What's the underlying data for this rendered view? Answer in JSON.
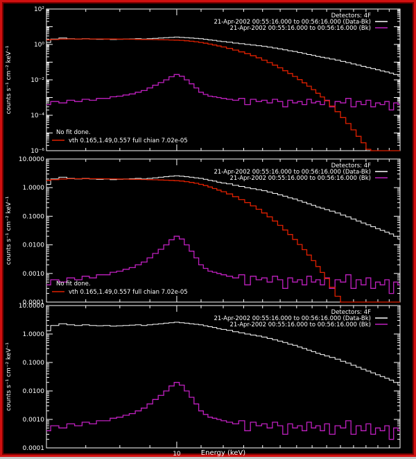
{
  "colors": {
    "background": "#000000",
    "frame": "#d01010",
    "data_minus_bk": "#ffffff",
    "background_series": "#c020c0",
    "model": "#e02000"
  },
  "xlabel": "Energy (keV)",
  "chart_data": [
    {
      "type": "line",
      "ylabel": "counts s⁻¹ cm⁻² keV⁻¹",
      "log_y": true,
      "ylim": [
        1e-06,
        100
      ],
      "yticks": [
        1e-06,
        0.0001,
        0.01,
        1,
        100
      ],
      "ytick_labels": [
        "10⁻⁶",
        "10⁻⁴",
        "10⁻²",
        "10⁰",
        "10²"
      ],
      "legend": {
        "placement": "top-right",
        "title": "Detectors: 4F",
        "entries": [
          "21-Apr-2002 00:55:16.000 to 00:56:16.000 (Data-Bk)",
          "21-Apr-2002 00:55:16.000 to 00:56:16.000 (Bk)"
        ]
      },
      "annotations": [
        "No fit done.",
        "vth 0.165,1.49,0.557  full chian 7.02e-05"
      ],
      "model_visible": true
    },
    {
      "type": "line",
      "ylabel": "counts s⁻¹ cm⁻² keV⁻¹",
      "log_y": true,
      "ylim": [
        0.0001,
        10
      ],
      "yticks": [
        0.0001,
        0.001,
        0.01,
        0.1,
        1,
        10
      ],
      "ytick_labels": [
        "0.0001",
        "0.0010",
        "0.0100",
        "0.1000",
        "1.0000",
        "10.0000"
      ],
      "legend": {
        "placement": "top-right",
        "title": "Detectors: 4F",
        "entries": [
          "21-Apr-2002 00:55:16.000 to 00:56:16.000 (Data-Bk)",
          "21-Apr-2002 00:55:16.000 to 00:56:16.000 (Bk)"
        ]
      },
      "annotations": [
        "No fit done.",
        "vth 0.165,1.49,0.557  full chian 7.02e-05"
      ],
      "model_visible": true
    },
    {
      "type": "line",
      "ylabel": "counts s⁻¹ cm⁻² keV⁻¹",
      "log_y": true,
      "ylim": [
        0.0001,
        10
      ],
      "yticks": [
        0.0001,
        0.001,
        0.01,
        0.1,
        1,
        10
      ],
      "ytick_labels": [
        "0.0001",
        "0.0010",
        "0.0100",
        "0.1000",
        "1.0000",
        "10.0000"
      ],
      "legend": {
        "placement": "top-right",
        "title": "Detectors: 4F",
        "entries": [
          "21-Apr-2002 00:55:16.000 to 00:56:16.000 (Data-Bk)",
          "21-Apr-2002 00:55:16.000 to 00:56:16.000 (Bk)"
        ]
      },
      "annotations": [],
      "model_visible": false
    }
  ],
  "x_axis": {
    "log_x": true,
    "xlim": [
      6.0,
      24.0
    ],
    "tick_label_values": [
      10
    ],
    "tick_labels": [
      "10"
    ]
  },
  "spectrum": {
    "energy_keV": [
      6.0,
      6.2,
      6.4,
      6.6,
      6.8,
      7.0,
      7.2,
      7.4,
      7.6,
      7.8,
      8.0,
      8.2,
      8.4,
      8.6,
      8.8,
      9.0,
      9.2,
      9.4,
      9.6,
      9.8,
      10.0,
      10.2,
      10.4,
      10.6,
      10.8,
      11.0,
      11.2,
      11.4,
      11.6,
      11.8,
      12.0,
      12.3,
      12.6,
      12.9,
      13.2,
      13.5,
      13.8,
      14.1,
      14.4,
      14.7,
      15.0,
      15.3,
      15.6,
      15.9,
      16.2,
      16.5,
      16.8,
      17.1,
      17.4,
      17.7,
      18.0,
      18.4,
      18.8,
      19.2,
      19.6,
      20.0,
      20.4,
      20.8,
      21.2,
      21.6,
      22.0,
      22.4,
      22.8,
      23.2,
      23.6,
      24.0
    ],
    "data_minus_bk": [
      1.3,
      2.0,
      2.3,
      2.1,
      2.0,
      2.1,
      2.0,
      1.95,
      2.0,
      1.9,
      1.95,
      2.0,
      2.05,
      2.1,
      2.0,
      2.1,
      2.2,
      2.3,
      2.4,
      2.5,
      2.6,
      2.5,
      2.4,
      2.3,
      2.2,
      2.1,
      1.95,
      1.8,
      1.7,
      1.55,
      1.45,
      1.35,
      1.2,
      1.1,
      1.0,
      0.92,
      0.85,
      0.78,
      0.7,
      0.63,
      0.56,
      0.5,
      0.44,
      0.4,
      0.35,
      0.31,
      0.27,
      0.24,
      0.21,
      0.19,
      0.17,
      0.15,
      0.13,
      0.11,
      0.095,
      0.08,
      0.068,
      0.058,
      0.05,
      0.043,
      0.037,
      0.032,
      0.028,
      0.024,
      0.02,
      0.016
    ],
    "bk": [
      0.0004,
      0.0006,
      0.0005,
      0.0007,
      0.0006,
      0.0008,
      0.0007,
      0.0009,
      0.0009,
      0.0011,
      0.0012,
      0.0014,
      0.0016,
      0.002,
      0.0025,
      0.0035,
      0.005,
      0.007,
      0.01,
      0.015,
      0.02,
      0.016,
      0.01,
      0.006,
      0.0035,
      0.002,
      0.0015,
      0.0012,
      0.0011,
      0.001,
      0.0009,
      0.0008,
      0.0007,
      0.0009,
      0.0004,
      0.0008,
      0.0006,
      0.0007,
      0.0005,
      0.0008,
      0.0006,
      0.0003,
      0.0007,
      0.0005,
      0.0006,
      0.0004,
      0.0008,
      0.0005,
      0.0006,
      0.0004,
      0.0007,
      0.0003,
      0.0006,
      0.0005,
      0.0009,
      0.0003,
      0.0006,
      0.0004,
      0.0007,
      0.0003,
      0.0005,
      0.0004,
      0.0006,
      0.0002,
      0.0005,
      0.0004
    ],
    "model": [
      1.8,
      1.9,
      2.0,
      2.05,
      2.05,
      2.06,
      2.05,
      2.04,
      2.03,
      2.02,
      2.0,
      1.98,
      1.96,
      1.94,
      1.92,
      1.9,
      1.88,
      1.85,
      1.82,
      1.79,
      1.75,
      1.7,
      1.62,
      1.52,
      1.42,
      1.3,
      1.18,
      1.05,
      0.93,
      0.82,
      0.72,
      0.6,
      0.48,
      0.38,
      0.3,
      0.23,
      0.175,
      0.13,
      0.095,
      0.068,
      0.048,
      0.033,
      0.023,
      0.0155,
      0.0103,
      0.0068,
      0.0044,
      0.0028,
      0.00175,
      0.00108,
      0.00066,
      0.00033,
      0.00016,
      7.4e-05,
      3.4e-05,
      1.5e-05,
      6.5e-06,
      2.8e-06,
      1.2e-06,
      5e-07,
      2e-07,
      8e-08,
      3e-08,
      1.1e-08,
      4e-09,
      1.4e-09
    ]
  }
}
